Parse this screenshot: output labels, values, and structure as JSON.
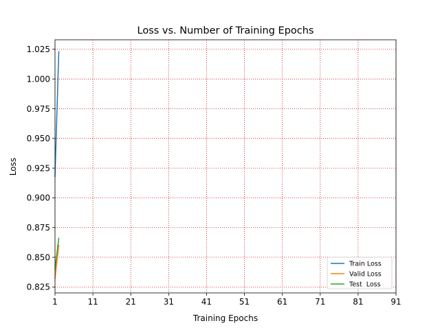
{
  "chart_data": {
    "type": "line",
    "title": "Loss vs. Number of Training Epochs",
    "xlabel": "Training Epochs",
    "ylabel": "Loss",
    "xlim": [
      1,
      91
    ],
    "ylim": [
      0.82,
      1.033
    ],
    "xticks": [
      1,
      11,
      21,
      31,
      41,
      51,
      61,
      71,
      81,
      91
    ],
    "yticks": [
      0.825,
      0.85,
      0.875,
      0.9,
      0.925,
      0.95,
      0.975,
      1.0,
      1.025
    ],
    "ytick_labels": [
      "0.825",
      "0.850",
      "0.875",
      "0.900",
      "0.925",
      "0.950",
      "0.975",
      "1.000",
      "1.025"
    ],
    "grid": true,
    "grid_color": "#cc0000",
    "legend_position": "lower-right",
    "series": [
      {
        "name": "Train Loss",
        "color": "#1f77b4",
        "x": [
          1,
          2
        ],
        "y": [
          0.918,
          1.023
        ]
      },
      {
        "name": "Valid Loss",
        "color": "#ff7f0e",
        "x": [
          1,
          2
        ],
        "y": [
          0.832,
          0.86
        ]
      },
      {
        "name": "Test  Loss",
        "color": "#2ca02c",
        "x": [
          1,
          2
        ],
        "y": [
          0.84,
          0.866
        ]
      }
    ]
  }
}
